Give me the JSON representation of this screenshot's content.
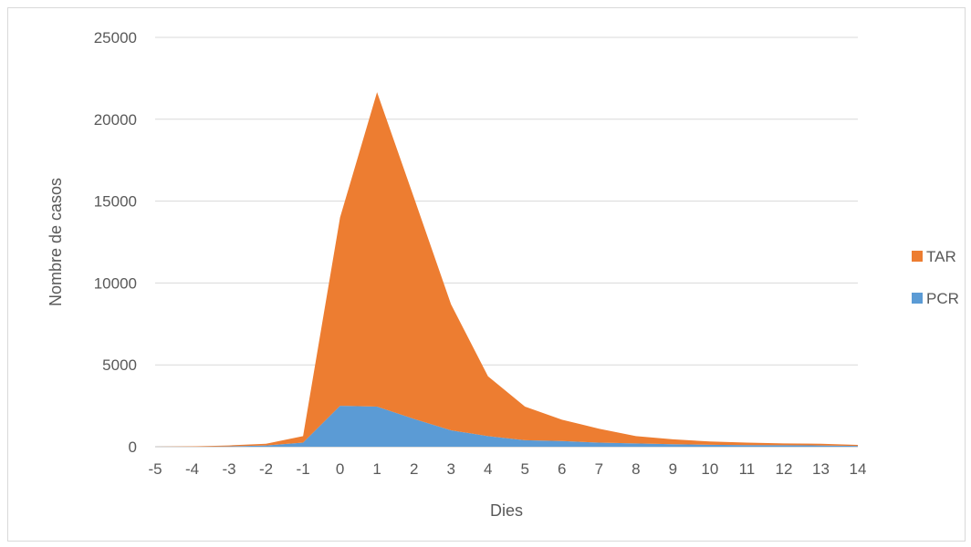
{
  "chart_data": {
    "type": "area",
    "stacked": true,
    "title": "",
    "xlabel": "Dies",
    "ylabel": "Nombre de casos",
    "x": [
      -5,
      -4,
      -3,
      -2,
      -1,
      0,
      1,
      2,
      3,
      4,
      5,
      6,
      7,
      8,
      9,
      10,
      11,
      12,
      13,
      14
    ],
    "ylim": [
      0,
      25000
    ],
    "y_ticks": [
      0,
      5000,
      10000,
      15000,
      20000,
      25000
    ],
    "grid": true,
    "legend_position": "right",
    "series": [
      {
        "name": "PCR",
        "color": "#5b9bd5",
        "values": [
          0,
          0,
          20,
          80,
          250,
          2500,
          2450,
          1700,
          1000,
          650,
          400,
          350,
          250,
          200,
          150,
          120,
          100,
          90,
          80,
          50
        ]
      },
      {
        "name": "TAR",
        "color": "#ed7d31",
        "values": [
          0,
          20,
          60,
          100,
          400,
          11500,
          19200,
          13500,
          7700,
          3650,
          2050,
          1300,
          850,
          450,
          300,
          200,
          150,
          110,
          100,
          60
        ]
      }
    ],
    "legend_order": [
      "TAR",
      "PCR"
    ]
  }
}
